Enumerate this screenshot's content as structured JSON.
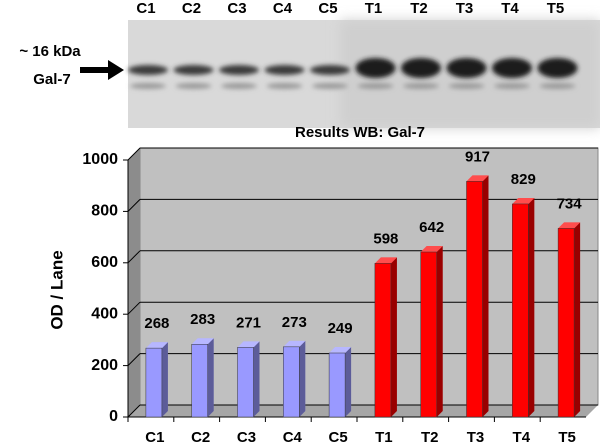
{
  "blot": {
    "lanes": [
      "C1",
      "C2",
      "C3",
      "C4",
      "C5",
      "T1",
      "T2",
      "T3",
      "T4",
      "T5"
    ],
    "marker": "~ 16 kDa",
    "protein": "Gal-7"
  },
  "chart_data": {
    "type": "bar",
    "title": "Results WB: Gal-7",
    "y_label": "OD / Lane",
    "categories": [
      "C1",
      "C2",
      "C3",
      "C4",
      "C5",
      "T1",
      "T2",
      "T3",
      "T4",
      "T5"
    ],
    "values": [
      268,
      283,
      271,
      273,
      249,
      598,
      642,
      917,
      829,
      734
    ],
    "colors": [
      "#9999ff",
      "#9999ff",
      "#9999ff",
      "#9999ff",
      "#9999ff",
      "#ff0000",
      "#ff0000",
      "#ff0000",
      "#ff0000",
      "#ff0000"
    ],
    "ylim": [
      0,
      1000
    ],
    "yticks": [
      0,
      200,
      400,
      600,
      800,
      1000
    ],
    "grid": true
  }
}
